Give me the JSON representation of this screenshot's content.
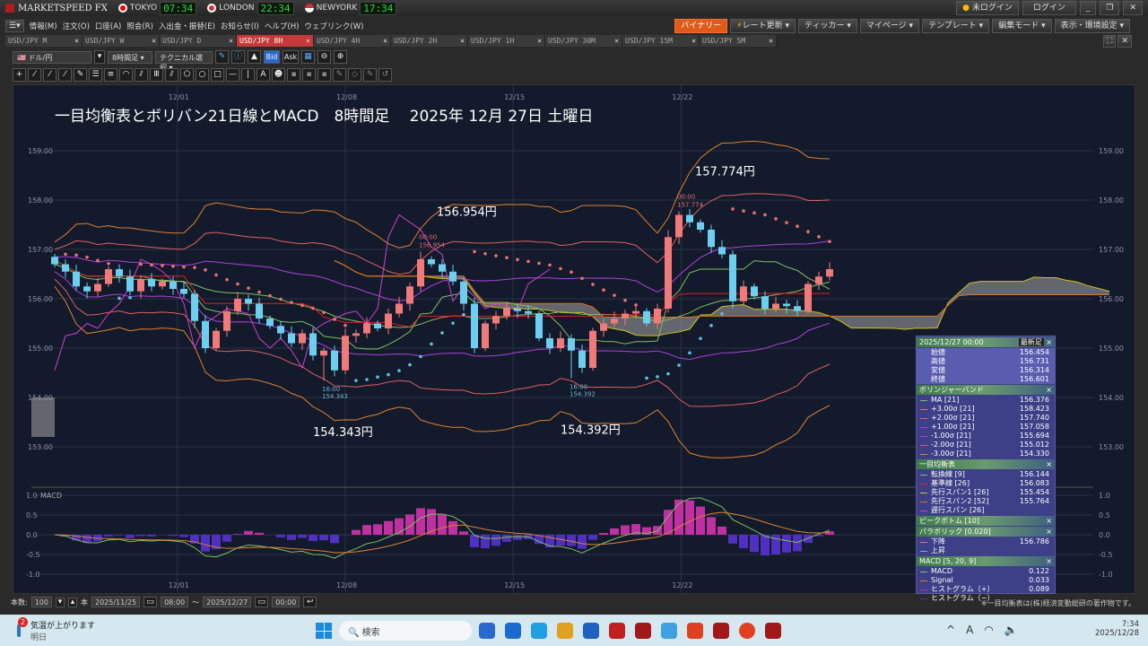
{
  "app": {
    "name": "MARKETSPEED FX",
    "clocks": [
      {
        "city": "TOKYO",
        "time": "07:34"
      },
      {
        "city": "LONDON",
        "time": "22:34"
      },
      {
        "city": "NEWYORK",
        "time": "17:34"
      }
    ],
    "login_status": "未ログイン",
    "login_button": "ログイン"
  },
  "menu": [
    "情報(M)",
    "注文(O)",
    "口座(A)",
    "照会(R)",
    "入出金・振替(E)",
    "お知らせ(I)",
    "ヘルプ(H)",
    "ウェブリンク(W)"
  ],
  "menu_right": [
    "バイナリー",
    "レート更新",
    "ティッカー",
    "マイページ",
    "テンプレート",
    "編集モード",
    "表示・環境設定"
  ],
  "tabs": [
    {
      "label": "USD/JPY M"
    },
    {
      "label": "USD/JPY W"
    },
    {
      "label": "USD/JPY D"
    },
    {
      "label": "USD/JPY 8H",
      "active": true
    },
    {
      "label": "USD/JPY 4H"
    },
    {
      "label": "USD/JPY 2H"
    },
    {
      "label": "USD/JPY 1H"
    },
    {
      "label": "USD/JPY 30M"
    },
    {
      "label": "USD/JPY 15M"
    },
    {
      "label": "USD/JPY 5M"
    }
  ],
  "toolbar": {
    "pair": "ドル/円",
    "timeframe": "8時間足",
    "technical": "テクニカル選択",
    "bid": "Bid",
    "ask": "Ask"
  },
  "drawing_tools": [
    "+",
    "⁄",
    "⁄",
    "⁄",
    "✎",
    "☰",
    "≡",
    "◠",
    "⫽",
    "Ⅲ",
    "⫽",
    "⬠",
    "○",
    "□",
    "—",
    "|",
    "A",
    "☻",
    "▪",
    "▪",
    "▪",
    "✎",
    "◇",
    "✎",
    "↺"
  ],
  "status": {
    "count_label": "本数:",
    "count": "100",
    "count_unit": "本",
    "from_date": "2025/11/25",
    "from_time": "08:00",
    "tilde": "〜",
    "to_date": "2025/12/27",
    "to_time": "00:00"
  },
  "copyright": "※一目均衡表は(株)経済変動総研の著作物です。",
  "panel": {
    "datetime": "2025/12/27 00:00",
    "latest": "最新足",
    "ohlc": [
      [
        "始値",
        "156.454"
      ],
      [
        "高値",
        "156.731"
      ],
      [
        "安値",
        "156.314"
      ],
      [
        "終値",
        "156.601"
      ]
    ],
    "sections": [
      {
        "title": "ボリンジャーバンド",
        "rows": [
          [
            "MA [21]",
            "156.376",
            "#7fbf5f"
          ],
          [
            "+3.00σ [21]",
            "158.423",
            "#e08030"
          ],
          [
            "+2.00σ [21]",
            "157.740",
            "#e06060"
          ],
          [
            "+1.00σ [21]",
            "157.058",
            "#b040e0"
          ],
          [
            "-1.00σ [21]",
            "155.694",
            "#b040e0"
          ],
          [
            "-2.00σ [21]",
            "155.012",
            "#e06060"
          ],
          [
            "-3.00σ [21]",
            "154.330",
            "#e08030"
          ]
        ]
      },
      {
        "title": "一目均衡表",
        "rows": [
          [
            "転換線 [9]",
            "156.144",
            "#7fbf5f"
          ],
          [
            "基準線 [26]",
            "156.083",
            "#e02020"
          ],
          [
            "先行スパン1 [26]",
            "155.454",
            "#d0c020"
          ],
          [
            "先行スパン2 [52]",
            "155.764",
            "#e07020"
          ],
          [
            "遅行スパン [26]",
            "",
            "#d040d0"
          ]
        ]
      },
      {
        "title": "ピークボトム [10]",
        "rows": []
      },
      {
        "title": "パラボリック [0.020]",
        "rows": [
          [
            "下降",
            "156.786",
            "#f07070"
          ],
          [
            "上昇",
            "",
            "#60c0e0"
          ]
        ]
      },
      {
        "title": "MACD [5, 20, 9]",
        "rows": [
          [
            "MACD",
            "0.122",
            "#7fbf5f"
          ],
          [
            "Signal",
            "0.033",
            "#e08030"
          ],
          [
            "ヒストグラム（+）",
            "0.089",
            "#c030a0"
          ],
          [
            "ヒストグラム（−）",
            "",
            "#5030c0"
          ]
        ]
      }
    ]
  },
  "taskbar": {
    "weather": "気温が上がります",
    "weather_sub": "明日",
    "weather_badge": "2",
    "search": "検索",
    "time": "7:34",
    "date": "2025/12/28"
  },
  "chart_data": {
    "type": "candlestick",
    "title": "一目均衡表とボリバン21日線とMACD　8時間足　 2025年 12月 27日 土曜日",
    "y_ticks": [
      "159.00",
      "158.00",
      "157.00",
      "156.00",
      "155.00",
      "154.00",
      "153.00"
    ],
    "ylim": [
      152.4,
      159.6
    ],
    "x_ticks": [
      {
        "label": "12/01",
        "index": 11.4
      },
      {
        "label": "12/08",
        "index": 27
      },
      {
        "label": "12/15",
        "index": 42.6
      },
      {
        "label": "12/22",
        "index": 58.2
      }
    ],
    "closes": [
      156.7,
      156.55,
      156.25,
      156.15,
      156.3,
      156.6,
      156.45,
      156.15,
      156.4,
      156.25,
      156.35,
      156.2,
      156.1,
      155.55,
      155.0,
      155.35,
      155.75,
      156.0,
      155.9,
      155.6,
      155.45,
      155.3,
      155.1,
      155.3,
      154.85,
      154.95,
      154.55,
      155.25,
      155.3,
      155.5,
      155.4,
      155.7,
      155.9,
      156.25,
      156.8,
      156.7,
      156.55,
      156.35,
      155.9,
      155.0,
      155.5,
      155.65,
      155.8,
      155.75,
      155.7,
      155.2,
      155.0,
      155.2,
      154.95,
      154.6,
      155.35,
      155.5,
      155.6,
      155.7,
      155.75,
      155.5,
      155.8,
      157.25,
      157.7,
      157.55,
      157.4,
      157.05,
      156.9,
      155.95,
      156.25,
      156.05,
      155.8,
      155.9,
      155.85,
      155.75,
      156.3,
      156.45,
      156.6
    ],
    "first_open": 156.85,
    "annotations": [
      {
        "text": "156.954円",
        "small": [
          "00:00",
          "156.954"
        ],
        "index": 34,
        "price": 156.954,
        "type": "high"
      },
      {
        "text": "157.774円",
        "small": [
          "00:00",
          "157.774"
        ],
        "index": 58,
        "price": 157.774,
        "type": "high"
      },
      {
        "text": "154.343円",
        "small": [
          "16:00",
          "154.343"
        ],
        "index": 25,
        "price": 154.343,
        "type": "low"
      },
      {
        "text": "154.392円",
        "small": [
          "16:00",
          "154.392"
        ],
        "index": 48,
        "price": 154.392,
        "type": "low"
      }
    ],
    "macd": {
      "label": "MACD",
      "y_ticks": [
        "1.0",
        "0.5",
        "0.0",
        "-0.5",
        "-1.0"
      ],
      "ylim": [
        -1.2,
        1.2
      ]
    },
    "colors": {
      "up": "#f07a7a",
      "down": "#6ccff0",
      "bg": "#131a2b",
      "cloud": "#9a9a9a"
    }
  }
}
